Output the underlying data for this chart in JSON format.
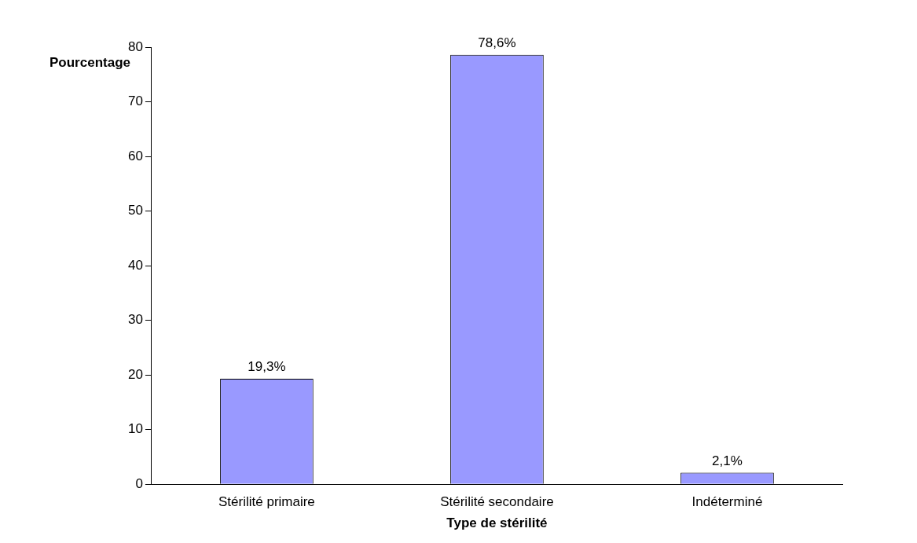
{
  "chart_data": {
    "type": "bar",
    "xlabel": "Type de stérilité",
    "ylabel": "Pourcentage",
    "categories": [
      "Stérilité primaire",
      "Stérilité secondaire",
      "Indéterminé"
    ],
    "values": [
      19.3,
      78.6,
      2.1
    ],
    "color": "#9999ff",
    "value_labels": [
      "19,3%",
      "78,6%",
      "2,1%"
    ],
    "ylim": [
      0,
      80
    ],
    "yticks": [
      0,
      10,
      20,
      30,
      40,
      50,
      60,
      70,
      80
    ],
    "grid": false,
    "legend": false
  }
}
